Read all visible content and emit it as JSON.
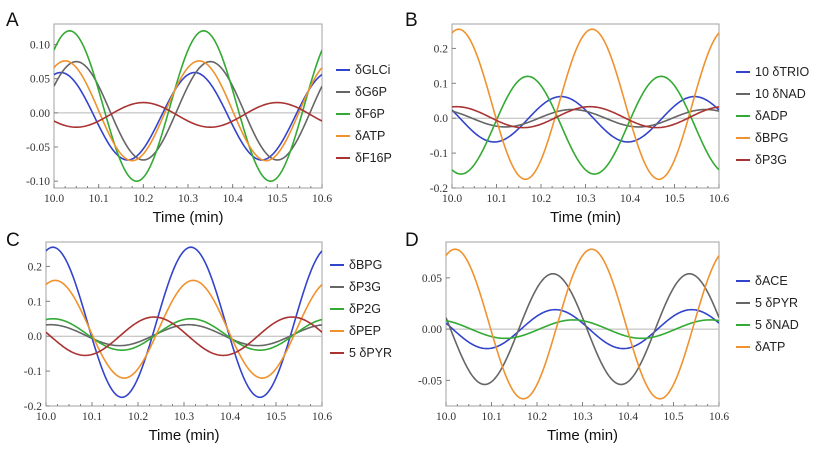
{
  "chart_data": [
    {
      "type": "line",
      "panel": "A",
      "xlabel": "Time (min)",
      "ylabel": "",
      "xlim": [
        10.0,
        10.6
      ],
      "ylim": [
        -0.11,
        0.13
      ],
      "xticks": [
        10.0,
        10.1,
        10.2,
        10.3,
        10.4,
        10.5,
        10.6
      ],
      "xtick_labels": [
        "10.0",
        "10.1",
        "10.2",
        "10.3",
        "10.4",
        "10.5",
        "10.6"
      ],
      "yticks": [
        -0.1,
        -0.05,
        0.0,
        0.05,
        0.1
      ],
      "ytick_labels": [
        "-0.10",
        "-0.05",
        "0.00",
        "0.05",
        "0.10"
      ],
      "legend_position": "right",
      "series": [
        {
          "name": "δGLCi",
          "color": "#3344cc",
          "amplitude": 0.064,
          "offset": -0.005,
          "peak_time": 10.165,
          "peak_sign": -1
        },
        {
          "name": "δG6P",
          "color": "#666666",
          "amplitude": 0.072,
          "offset": 0.003,
          "peak_time": 10.05,
          "peak_sign": 1
        },
        {
          "name": "δF6P",
          "color": "#33aa33",
          "amplitude": 0.11,
          "offset": 0.01,
          "peak_time": 10.035,
          "peak_sign": 1
        },
        {
          "name": "δATP",
          "color": "#f0922e",
          "amplitude": 0.073,
          "offset": 0.003,
          "peak_time": 10.025,
          "peak_sign": 1
        },
        {
          "name": "δF16P",
          "color": "#aa3333",
          "amplitude": 0.018,
          "offset": -0.003,
          "peak_time": 10.2,
          "peak_sign": 1
        }
      ]
    },
    {
      "type": "line",
      "panel": "B",
      "xlabel": "Time (min)",
      "ylabel": "",
      "xlim": [
        10.0,
        10.6
      ],
      "ylim": [
        -0.2,
        0.27
      ],
      "xticks": [
        10.0,
        10.1,
        10.2,
        10.3,
        10.4,
        10.5,
        10.6
      ],
      "xtick_labels": [
        "10.0",
        "10.1",
        "10.2",
        "10.3",
        "10.4",
        "10.5",
        "10.6"
      ],
      "yticks": [
        -0.2,
        -0.1,
        0.0,
        0.1,
        0.2
      ],
      "ytick_labels": [
        "-0.2",
        "-0.1",
        "0.0",
        "0.1",
        "0.2"
      ],
      "legend_position": "right",
      "series": [
        {
          "name": "10 δTRIO",
          "color": "#3344cc",
          "amplitude": 0.065,
          "offset": -0.003,
          "peak_time": 10.245,
          "peak_sign": 1
        },
        {
          "name": "10 δNAD",
          "color": "#666666",
          "amplitude": 0.025,
          "offset": 0.0,
          "peak_time": 10.27,
          "peak_sign": 1
        },
        {
          "name": "δADP",
          "color": "#33aa33",
          "amplitude": 0.14,
          "offset": -0.02,
          "peak_time": 10.17,
          "peak_sign": 1
        },
        {
          "name": "δBPG",
          "color": "#f0922e",
          "amplitude": 0.215,
          "offset": 0.04,
          "peak_time": 10.015,
          "peak_sign": 1
        },
        {
          "name": "δP3G",
          "color": "#aa3333",
          "amplitude": 0.03,
          "offset": 0.003,
          "peak_time": 10.01,
          "peak_sign": 1
        }
      ]
    },
    {
      "type": "line",
      "panel": "C",
      "xlabel": "Time (min)",
      "ylabel": "",
      "xlim": [
        10.0,
        10.6
      ],
      "ylim": [
        -0.2,
        0.27
      ],
      "xticks": [
        10.0,
        10.1,
        10.2,
        10.3,
        10.4,
        10.5,
        10.6
      ],
      "xtick_labels": [
        "10.0",
        "10.1",
        "10.2",
        "10.3",
        "10.4",
        "10.5",
        "10.6"
      ],
      "yticks": [
        -0.2,
        -0.1,
        0.0,
        0.1,
        0.2
      ],
      "ytick_labels": [
        "-0.2",
        "-0.1",
        "0.0",
        "0.1",
        "0.2"
      ],
      "legend_position": "right",
      "series": [
        {
          "name": "δBPG",
          "color": "#3344cc",
          "amplitude": 0.215,
          "offset": 0.04,
          "peak_time": 10.015,
          "peak_sign": 1
        },
        {
          "name": "δP3G",
          "color": "#666666",
          "amplitude": 0.03,
          "offset": 0.003,
          "peak_time": 10.01,
          "peak_sign": 1
        },
        {
          "name": "δP2G",
          "color": "#33aa33",
          "amplitude": 0.045,
          "offset": 0.005,
          "peak_time": 10.015,
          "peak_sign": 1
        },
        {
          "name": "δPEP",
          "color": "#f0922e",
          "amplitude": 0.14,
          "offset": 0.02,
          "peak_time": 10.02,
          "peak_sign": 1
        },
        {
          "name": "5 δPYR",
          "color": "#aa3333",
          "amplitude": 0.055,
          "offset": 0.0,
          "peak_time": 10.235,
          "peak_sign": 1
        }
      ]
    },
    {
      "type": "line",
      "panel": "D",
      "xlabel": "Time (min)",
      "ylabel": "",
      "xlim": [
        10.0,
        10.6
      ],
      "ylim": [
        -0.075,
        0.085
      ],
      "xticks": [
        10.0,
        10.1,
        10.2,
        10.3,
        10.4,
        10.5,
        10.6
      ],
      "xtick_labels": [
        "10.0",
        "10.1",
        "10.2",
        "10.3",
        "10.4",
        "10.5",
        "10.6"
      ],
      "yticks": [
        -0.05,
        0.0,
        0.05
      ],
      "ytick_labels": [
        "-0.05",
        "0.00",
        "0.05"
      ],
      "legend_position": "right",
      "series": [
        {
          "name": "δACE",
          "color": "#3344cc",
          "amplitude": 0.019,
          "offset": 0.0,
          "peak_time": 10.24,
          "peak_sign": 1
        },
        {
          "name": "5 δPYR",
          "color": "#666666",
          "amplitude": 0.054,
          "offset": 0.0,
          "peak_time": 10.235,
          "peak_sign": 1
        },
        {
          "name": "5 δNAD",
          "color": "#33aa33",
          "amplitude": 0.009,
          "offset": 0.0,
          "peak_time": 10.28,
          "peak_sign": 1
        },
        {
          "name": "δATP",
          "color": "#f0922e",
          "amplitude": 0.073,
          "offset": 0.005,
          "peak_time": 10.02,
          "peak_sign": 1
        }
      ]
    }
  ],
  "period_min": 0.3
}
